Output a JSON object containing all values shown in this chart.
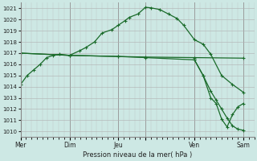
{
  "bg_color": "#cde8e4",
  "grid_color": "#b0b0b0",
  "line_color": "#1a6b2a",
  "xlabel": "Pression niveau de la mer( hPa )",
  "ylim": [
    1009.5,
    1021.5
  ],
  "yticks": [
    1010,
    1011,
    1012,
    1013,
    1014,
    1015,
    1016,
    1017,
    1018,
    1019,
    1020,
    1021
  ],
  "xtick_positions": [
    0,
    45,
    90,
    115,
    160,
    205
  ],
  "xtick_labels": [
    "Mer",
    "Dim",
    "Jeu",
    "",
    "Ven",
    "Sam"
  ],
  "xvlines": [
    0,
    45,
    90,
    115,
    160,
    205
  ],
  "xlim": [
    0,
    215
  ],
  "series1_x": [
    0,
    6,
    12,
    18,
    24,
    30,
    36,
    45,
    54,
    60,
    68,
    75,
    84,
    90,
    96,
    100,
    108,
    115,
    120,
    128,
    136,
    144,
    150,
    160,
    168,
    175,
    185,
    195,
    205
  ],
  "series1_y": [
    1014.2,
    1015.0,
    1015.5,
    1016.0,
    1016.6,
    1016.8,
    1016.9,
    1016.8,
    1017.2,
    1017.5,
    1018.0,
    1018.8,
    1019.1,
    1019.5,
    1019.9,
    1020.2,
    1020.5,
    1021.1,
    1021.05,
    1020.9,
    1020.5,
    1020.1,
    1019.5,
    1018.2,
    1017.8,
    1016.9,
    1015.0,
    1014.2,
    1013.5
  ],
  "series2_x": [
    0,
    45,
    90,
    115,
    160,
    205
  ],
  "series2_y": [
    1017.0,
    1016.8,
    1016.7,
    1016.65,
    1016.6,
    1016.55
  ],
  "series3_x": [
    0,
    45,
    90,
    115,
    160,
    168,
    175,
    180,
    185,
    190,
    195,
    200,
    205
  ],
  "series3_y": [
    1017.0,
    1016.8,
    1016.7,
    1016.6,
    1016.4,
    1015.0,
    1013.6,
    1012.8,
    1012.0,
    1011.2,
    1010.5,
    1010.2,
    1010.1
  ],
  "series4_x": [
    160,
    168,
    175,
    180,
    185,
    190,
    195,
    200,
    205
  ],
  "series4_y": [
    1016.4,
    1015.0,
    1013.0,
    1012.5,
    1011.1,
    1010.4,
    1011.5,
    1012.2,
    1012.5
  ]
}
